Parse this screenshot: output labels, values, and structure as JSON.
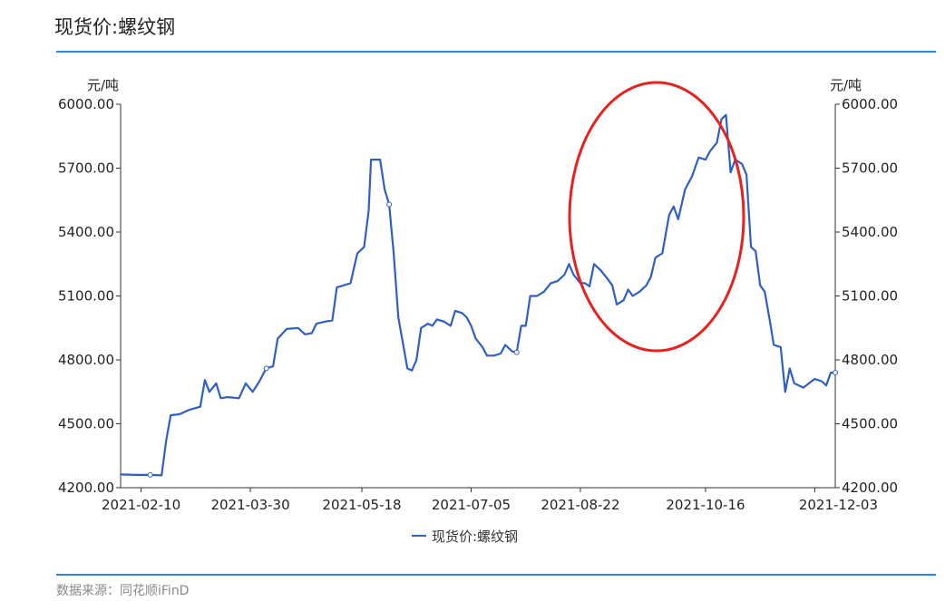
{
  "header": {
    "title": "现货价:螺纹钢"
  },
  "footer": {
    "source": "数据来源：同花顺iFinD"
  },
  "colors": {
    "line": "#2f5fc4",
    "rule": "#2e86de",
    "highlight": "#e8211e"
  },
  "chart_data": {
    "type": "line",
    "title": "现货价:螺纹钢",
    "y_unit_left": "元/吨",
    "y_unit_right": "元/吨",
    "ylim": [
      4200,
      6000
    ],
    "y_ticks": [
      "4200.00",
      "4500.00",
      "4800.00",
      "5100.00",
      "5400.00",
      "5700.00",
      "6000.00"
    ],
    "x_ticks": [
      "2021-02-10",
      "2021-03-30",
      "2021-05-18",
      "2021-07-05",
      "2021-08-22",
      "2021-10-16",
      "2021-12-03"
    ],
    "legend": "现货价:螺纹钢",
    "annotation": "red ellipse highlighting 2021-08-22 to 2021-10-16 rise",
    "series": [
      {
        "name": "现货价:螺纹钢",
        "points": [
          [
            "2021-02-01",
            4262
          ],
          [
            "2021-02-08",
            4260
          ],
          [
            "2021-02-14",
            4260
          ],
          [
            "2021-02-19",
            4258
          ],
          [
            "2021-02-21",
            4420
          ],
          [
            "2021-02-23",
            4540
          ],
          [
            "2021-02-27",
            4545
          ],
          [
            "2021-03-03",
            4565
          ],
          [
            "2021-03-08",
            4580
          ],
          [
            "2021-03-10",
            4705
          ],
          [
            "2021-03-12",
            4650
          ],
          [
            "2021-03-15",
            4690
          ],
          [
            "2021-03-17",
            4620
          ],
          [
            "2021-03-20",
            4625
          ],
          [
            "2021-03-25",
            4620
          ],
          [
            "2021-03-28",
            4690
          ],
          [
            "2021-03-31",
            4650
          ],
          [
            "2021-04-03",
            4700
          ],
          [
            "2021-04-06",
            4760
          ],
          [
            "2021-04-09",
            4770
          ],
          [
            "2021-04-11",
            4900
          ],
          [
            "2021-04-15",
            4945
          ],
          [
            "2021-04-20",
            4950
          ],
          [
            "2021-04-23",
            4920
          ],
          [
            "2021-04-26",
            4925
          ],
          [
            "2021-04-28",
            4970
          ],
          [
            "2021-05-02",
            4980
          ],
          [
            "2021-05-05",
            4985
          ],
          [
            "2021-05-07",
            5140
          ],
          [
            "2021-05-10",
            5150
          ],
          [
            "2021-05-13",
            5160
          ],
          [
            "2021-05-16",
            5300
          ],
          [
            "2021-05-19",
            5330
          ],
          [
            "2021-05-21",
            5500
          ],
          [
            "2021-05-22",
            5740
          ],
          [
            "2021-05-26",
            5740
          ],
          [
            "2021-05-28",
            5600
          ],
          [
            "2021-05-30",
            5530
          ],
          [
            "2021-06-01",
            5300
          ],
          [
            "2021-06-03",
            5000
          ],
          [
            "2021-06-05",
            4880
          ],
          [
            "2021-06-07",
            4760
          ],
          [
            "2021-06-09",
            4750
          ],
          [
            "2021-06-11",
            4800
          ],
          [
            "2021-06-13",
            4950
          ],
          [
            "2021-06-16",
            4970
          ],
          [
            "2021-06-18",
            4960
          ],
          [
            "2021-06-20",
            4990
          ],
          [
            "2021-06-23",
            4980
          ],
          [
            "2021-06-26",
            4960
          ],
          [
            "2021-06-28",
            5030
          ],
          [
            "2021-07-01",
            5020
          ],
          [
            "2021-07-03",
            5000
          ],
          [
            "2021-07-05",
            4960
          ],
          [
            "2021-07-07",
            4900
          ],
          [
            "2021-07-10",
            4860
          ],
          [
            "2021-07-12",
            4820
          ],
          [
            "2021-07-15",
            4820
          ],
          [
            "2021-07-18",
            4830
          ],
          [
            "2021-07-20",
            4870
          ],
          [
            "2021-07-23",
            4840
          ],
          [
            "2021-07-25",
            4835
          ],
          [
            "2021-07-27",
            4960
          ],
          [
            "2021-07-29",
            4960
          ],
          [
            "2021-07-31",
            5100
          ],
          [
            "2021-08-03",
            5100
          ],
          [
            "2021-08-06",
            5120
          ],
          [
            "2021-08-09",
            5160
          ],
          [
            "2021-08-12",
            5170
          ],
          [
            "2021-08-15",
            5200
          ],
          [
            "2021-08-17",
            5250
          ],
          [
            "2021-08-19",
            5200
          ],
          [
            "2021-08-22",
            5160
          ],
          [
            "2021-08-24",
            5160
          ],
          [
            "2021-08-26",
            5145
          ],
          [
            "2021-08-28",
            5250
          ],
          [
            "2021-08-31",
            5220
          ],
          [
            "2021-09-03",
            5180
          ],
          [
            "2021-09-05",
            5150
          ],
          [
            "2021-09-07",
            5060
          ],
          [
            "2021-09-10",
            5080
          ],
          [
            "2021-09-12",
            5130
          ],
          [
            "2021-09-14",
            5100
          ],
          [
            "2021-09-17",
            5120
          ],
          [
            "2021-09-20",
            5150
          ],
          [
            "2021-09-22",
            5190
          ],
          [
            "2021-09-24",
            5280
          ],
          [
            "2021-09-27",
            5300
          ],
          [
            "2021-09-30",
            5480
          ],
          [
            "2021-10-02",
            5520
          ],
          [
            "2021-10-04",
            5460
          ],
          [
            "2021-10-07",
            5600
          ],
          [
            "2021-10-10",
            5660
          ],
          [
            "2021-10-13",
            5750
          ],
          [
            "2021-10-16",
            5740
          ],
          [
            "2021-10-18",
            5780
          ],
          [
            "2021-10-21",
            5820
          ],
          [
            "2021-10-23",
            5930
          ],
          [
            "2021-10-25",
            5950
          ],
          [
            "2021-10-27",
            5680
          ],
          [
            "2021-10-29",
            5740
          ],
          [
            "2021-11-01",
            5720
          ],
          [
            "2021-11-03",
            5670
          ],
          [
            "2021-11-05",
            5330
          ],
          [
            "2021-11-07",
            5310
          ],
          [
            "2021-11-09",
            5150
          ],
          [
            "2021-11-11",
            5120
          ],
          [
            "2021-11-13",
            5000
          ],
          [
            "2021-11-15",
            4870
          ],
          [
            "2021-11-18",
            4860
          ],
          [
            "2021-11-20",
            4650
          ],
          [
            "2021-11-22",
            4760
          ],
          [
            "2021-11-24",
            4690
          ],
          [
            "2021-11-28",
            4670
          ],
          [
            "2021-12-01",
            4695
          ],
          [
            "2021-12-03",
            4710
          ],
          [
            "2021-12-06",
            4700
          ],
          [
            "2021-12-08",
            4680
          ],
          [
            "2021-12-10",
            4740
          ],
          [
            "2021-12-12",
            4740
          ]
        ]
      }
    ]
  }
}
